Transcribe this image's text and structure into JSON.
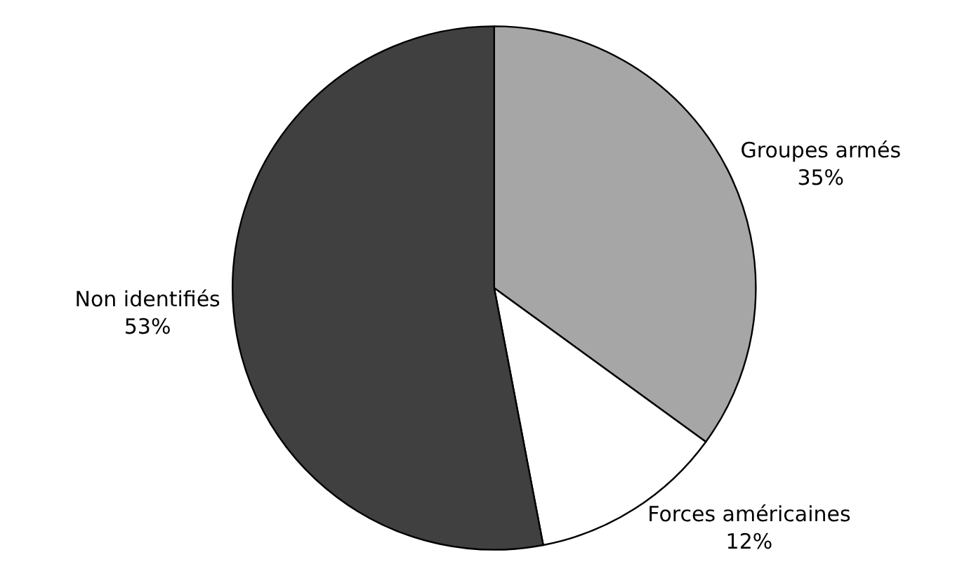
{
  "chart_data": {
    "type": "pie",
    "categories": [
      "Groupes armés",
      "Forces américaines",
      "Non identifiés"
    ],
    "values": [
      35,
      12,
      53
    ],
    "colors": [
      "#a6a6a6",
      "#ffffff",
      "#404040"
    ],
    "value_labels": [
      "35%",
      "12%",
      "53%"
    ],
    "legend": false
  }
}
